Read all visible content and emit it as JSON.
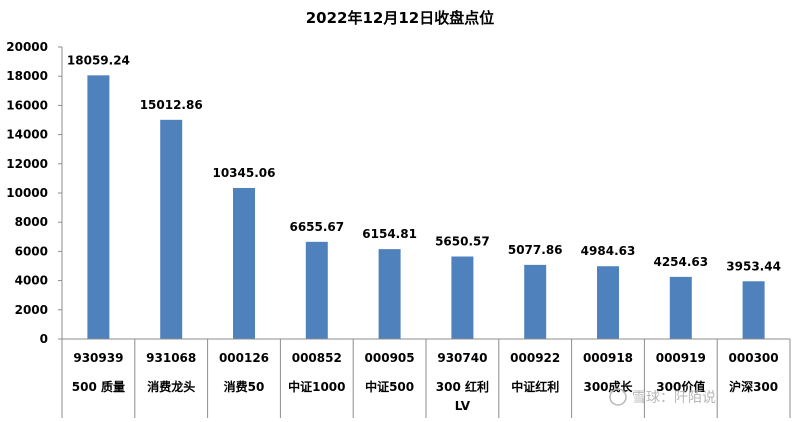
{
  "chart_data": {
    "type": "bar",
    "title": "2022年12月12日收盘点位",
    "ylim": [
      0,
      20000
    ],
    "yticks": [
      0,
      2000,
      4000,
      6000,
      8000,
      10000,
      12000,
      14000,
      16000,
      18000,
      20000
    ],
    "grid": false,
    "legend": "none",
    "bar_color": "#4f81bd",
    "categories": [
      {
        "code": "930939",
        "name": [
          "500 质量"
        ]
      },
      {
        "code": "931068",
        "name": [
          "消费龙头"
        ]
      },
      {
        "code": "000126",
        "name": [
          "消费50"
        ]
      },
      {
        "code": "000852",
        "name": [
          "中证1000"
        ]
      },
      {
        "code": "000905",
        "name": [
          "中证500"
        ]
      },
      {
        "code": "930740",
        "name": [
          "300 红利",
          "LV"
        ]
      },
      {
        "code": "000922",
        "name": [
          "中证红利"
        ]
      },
      {
        "code": "000918",
        "name": [
          "300成长"
        ]
      },
      {
        "code": "000919",
        "name": [
          "300价值"
        ]
      },
      {
        "code": "000300",
        "name": [
          "沪深300"
        ]
      }
    ],
    "values": [
      18059.24,
      15012.86,
      10345.06,
      6655.67,
      6154.81,
      5650.57,
      5077.86,
      4984.63,
      4254.63,
      3953.44
    ],
    "data_labels": [
      "18059.24",
      "15012.86",
      "10345.06",
      "6655.67",
      "6154.81",
      "5650.57",
      "5077.86",
      "4984.63",
      "4254.63",
      "3953.44"
    ]
  },
  "watermark": "雪球：阡陌说"
}
